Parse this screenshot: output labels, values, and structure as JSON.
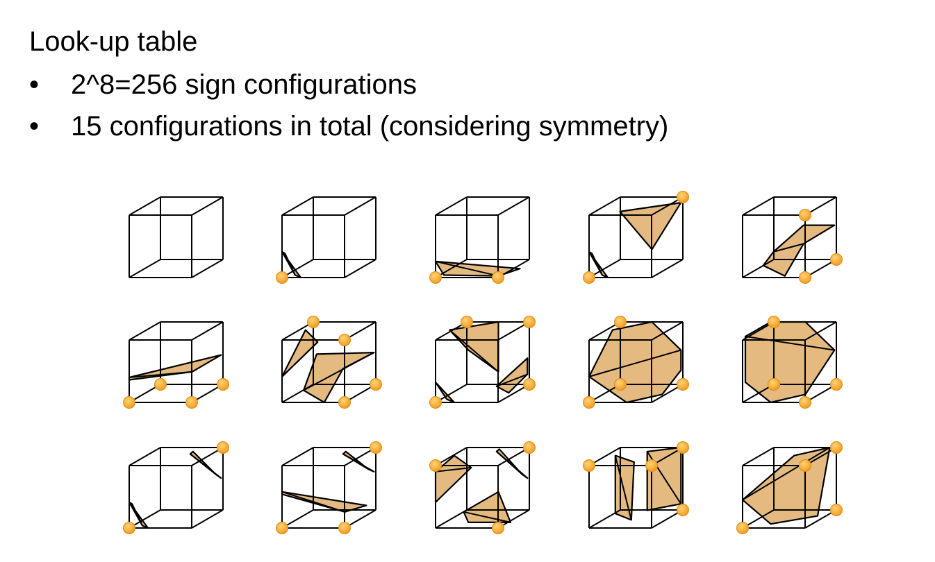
{
  "slide": {
    "title": "Look-up table",
    "bullets": [
      "2^8=256 sign configurations",
      "15 configurations in total (considering symmetry)"
    ]
  },
  "colors": {
    "surface_fill": "#dfae6a",
    "surface_edge": "#b88a4a",
    "vertex_marker": "#f29c1f",
    "cube_line": "#000000"
  },
  "cases": [
    {
      "id": 0,
      "marked_vertices": []
    },
    {
      "id": 1,
      "marked_vertices": [
        0
      ]
    },
    {
      "id": 2,
      "marked_vertices": [
        0,
        1
      ]
    },
    {
      "id": 3,
      "marked_vertices": [
        0,
        6
      ]
    },
    {
      "id": 4,
      "marked_vertices": [
        1,
        2,
        5
      ]
    },
    {
      "id": 5,
      "marked_vertices": [
        0,
        1,
        2,
        3
      ]
    },
    {
      "id": 6,
      "marked_vertices": [
        1,
        2,
        5,
        7
      ]
    },
    {
      "id": 7,
      "marked_vertices": [
        0,
        2,
        6,
        7
      ]
    },
    {
      "id": 8,
      "marked_vertices": [
        0,
        2,
        3,
        7
      ]
    },
    {
      "id": 9,
      "marked_vertices": [
        1,
        2,
        3,
        7
      ]
    },
    {
      "id": 10,
      "marked_vertices": [
        0,
        6
      ]
    },
    {
      "id": 11,
      "marked_vertices": [
        0,
        1,
        6
      ]
    },
    {
      "id": 12,
      "marked_vertices": [
        1,
        6,
        4
      ]
    },
    {
      "id": 13,
      "marked_vertices": [
        4,
        2,
        6,
        5
      ]
    },
    {
      "id": 14,
      "marked_vertices": [
        0,
        2,
        5,
        6
      ]
    }
  ]
}
